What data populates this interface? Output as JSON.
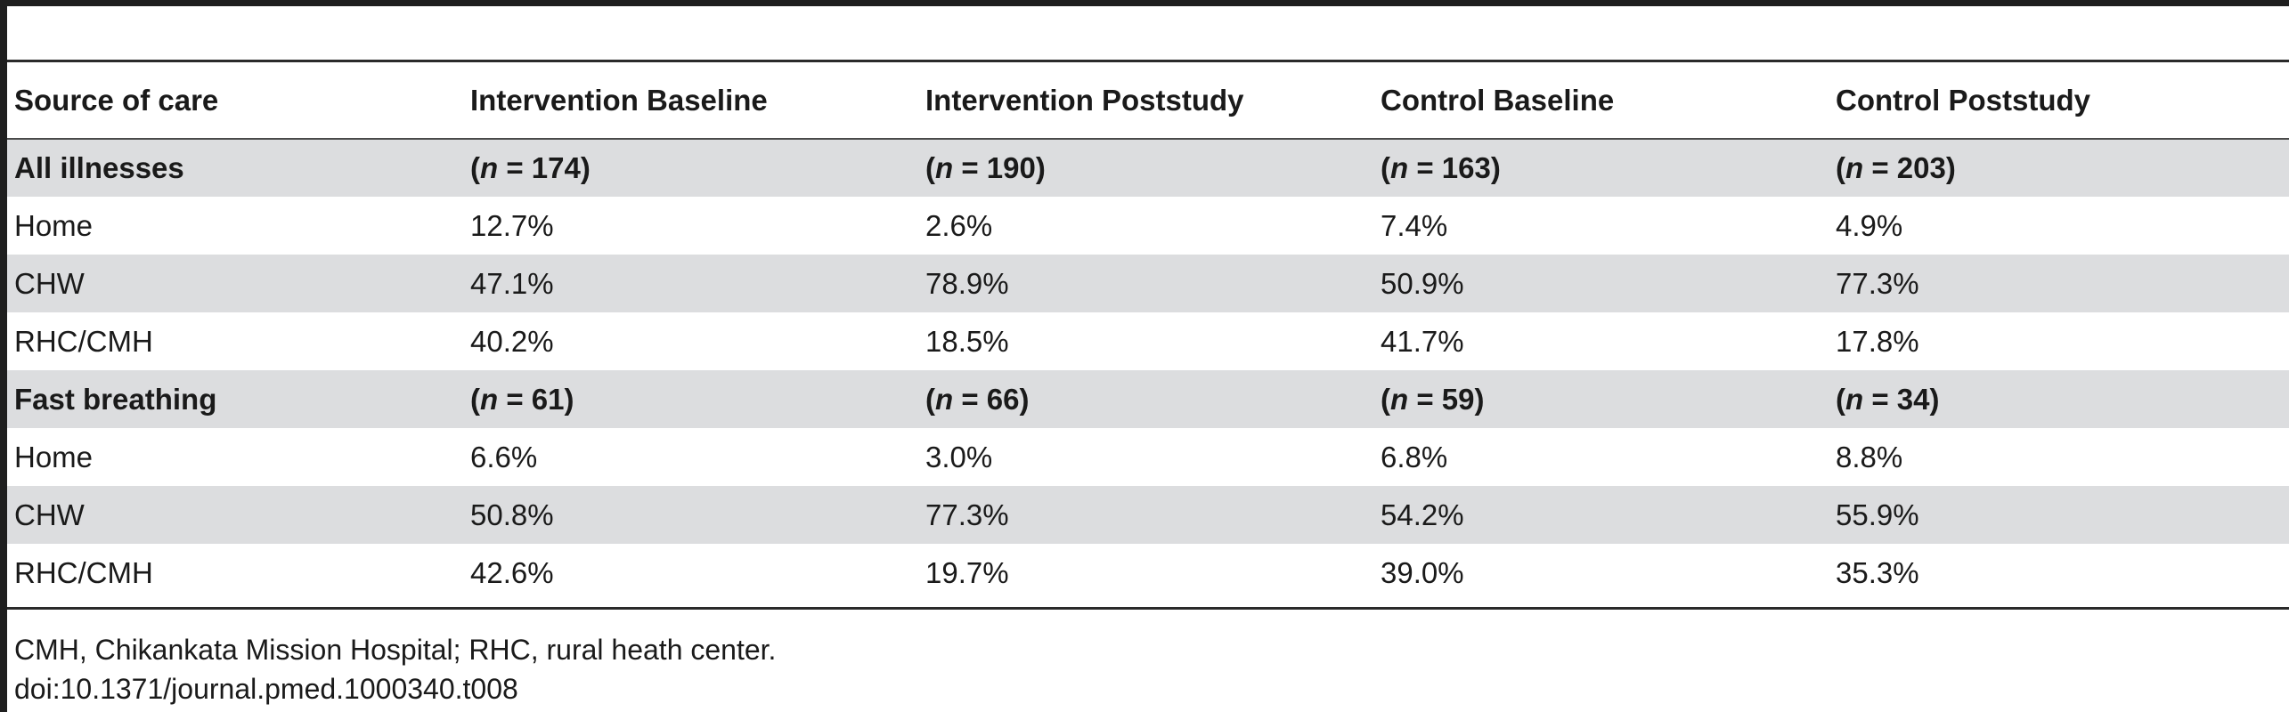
{
  "table": {
    "columns": [
      "Source of care",
      "Intervention Baseline",
      "Intervention Poststudy",
      "Control Baseline",
      "Control Poststudy"
    ],
    "sections": [
      {
        "label": "All illnesses",
        "n": [
          "174",
          "190",
          "163",
          "203"
        ],
        "rows": [
          {
            "label": "Home",
            "values": [
              "12.7%",
              "2.6%",
              "7.4%",
              "4.9%"
            ]
          },
          {
            "label": "CHW",
            "values": [
              "47.1%",
              "78.9%",
              "50.9%",
              "77.3%"
            ]
          },
          {
            "label": "RHC/CMH",
            "values": [
              "40.2%",
              "18.5%",
              "41.7%",
              "17.8%"
            ]
          }
        ]
      },
      {
        "label": "Fast breathing",
        "n": [
          "61",
          "66",
          "59",
          "34"
        ],
        "rows": [
          {
            "label": "Home",
            "values": [
              "6.6%",
              "3.0%",
              "6.8%",
              "8.8%"
            ]
          },
          {
            "label": "CHW",
            "values": [
              "50.8%",
              "77.3%",
              "54.2%",
              "55.9%"
            ]
          },
          {
            "label": "RHC/CMH",
            "values": [
              "42.6%",
              "19.7%",
              "39.0%",
              "35.3%"
            ]
          }
        ]
      }
    ],
    "n_symbol": "n"
  },
  "footnote": "CMH, Chikankata Mission Hospital; RHC, rural heath center.",
  "doi": "doi:10.1371/journal.pmed.1000340.t008"
}
